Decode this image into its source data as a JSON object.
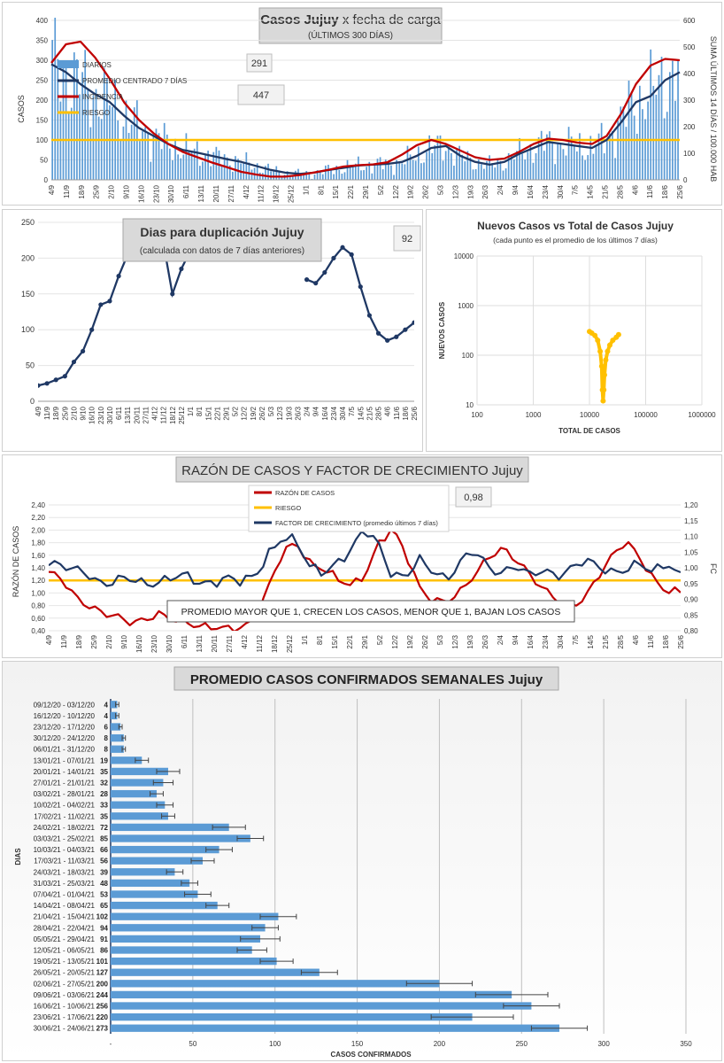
{
  "chart_data": [
    {
      "type": "bar",
      "id": "casos",
      "title": "Casos Jujuy",
      "title_suffix": "x fecha de carga",
      "subtitle": "(ÚLTIMOS 300 DÍAS)",
      "ylabel": "CASOS",
      "ylabel_right": "SUMA  ÚLTIMOS 14 DÍAS / 100.000 HAB",
      "ylim": [
        0,
        400
      ],
      "ylim_right": [
        0,
        600
      ],
      "yticks": [
        0,
        50,
        100,
        150,
        200,
        250,
        300,
        350,
        400
      ],
      "yticks_right": [
        0,
        100,
        200,
        300,
        400,
        500,
        600
      ],
      "x_ticks": [
        "4/9",
        "11/9",
        "18/9",
        "25/9",
        "2/10",
        "9/10",
        "16/10",
        "23/10",
        "30/10",
        "6/11",
        "13/11",
        "20/11",
        "27/11",
        "4/12",
        "11/12",
        "18/12",
        "25/12",
        "1/1",
        "8/1",
        "15/1",
        "22/1",
        "29/1",
        "5/2",
        "12/2",
        "19/2",
        "26/2",
        "5/3",
        "12/3",
        "19/3",
        "26/3",
        "2/4",
        "9/4",
        "16/4",
        "23/4",
        "30/4",
        "7/5",
        "14/5",
        "21/5",
        "28/5",
        "4/6",
        "11/6",
        "18/6",
        "25/6"
      ],
      "legend": [
        "DIARIOS",
        "PROMEDIO CENTRADO 7 DÍAS",
        "INCIDENCIA",
        "RIESGO"
      ],
      "annotations": [
        "291",
        "447"
      ],
      "riesgo": 100,
      "series": [
        {
          "name": "PROMEDIO CENTRADO 7 DÍAS",
          "axis": "left",
          "values": [
            290,
            270,
            240,
            215,
            195,
            160,
            130,
            110,
            90,
            75,
            68,
            60,
            52,
            45,
            35,
            25,
            18,
            15,
            18,
            25,
            30,
            36,
            38,
            40,
            45,
            60,
            80,
            85,
            60,
            45,
            38,
            45,
            65,
            80,
            95,
            90,
            85,
            80,
            100,
            145,
            195,
            210,
            250,
            270
          ]
        },
        {
          "name": "INCIDENCIA",
          "axis": "right",
          "values": [
            440,
            510,
            520,
            460,
            380,
            290,
            225,
            175,
            135,
            105,
            85,
            65,
            48,
            30,
            20,
            12,
            12,
            18,
            28,
            38,
            50,
            55,
            58,
            66,
            95,
            130,
            150,
            135,
            110,
            85,
            75,
            80,
            105,
            135,
            155,
            150,
            140,
            135,
            165,
            250,
            360,
            430,
            455,
            450
          ]
        }
      ]
    },
    {
      "type": "line",
      "id": "duplicacion",
      "title": "Dias para duplicación Jujuy",
      "subtitle": "(calculada con datos de 7 días anteriores)",
      "annotations": [
        "92"
      ],
      "ylim": [
        0,
        250
      ],
      "yticks": [
        0,
        50,
        100,
        150,
        200,
        250
      ],
      "x_ticks": [
        "4/9",
        "11/9",
        "18/9",
        "25/9",
        "2/10",
        "9/10",
        "16/10",
        "23/10",
        "30/10",
        "6/11",
        "13/11",
        "20/11",
        "27/11",
        "4/12",
        "11/12",
        "18/12",
        "25/12",
        "1/1",
        "8/1",
        "15/1",
        "22/1",
        "29/1",
        "5/2",
        "12/2",
        "19/2",
        "26/2",
        "5/3",
        "12/3",
        "19/3",
        "26/3",
        "2/4",
        "9/4",
        "16/4",
        "23/4",
        "30/4",
        "7/5",
        "14/5",
        "21/5",
        "28/5",
        "4/6",
        "11/6",
        "18/6",
        "25/6"
      ],
      "series": [
        {
          "segment": 1,
          "start": 0,
          "values": [
            22,
            25,
            30,
            35,
            55,
            70,
            100,
            135,
            140,
            175,
            205,
            240,
            260
          ]
        },
        {
          "segment": 2,
          "start": 14,
          "values": [
            220,
            150,
            185,
            210,
            240
          ]
        },
        {
          "segment": 3,
          "start": 30,
          "values": [
            170,
            165,
            180,
            200,
            215,
            205,
            160,
            120,
            95,
            85,
            90,
            100,
            110,
            95,
            90
          ]
        }
      ]
    },
    {
      "type": "scatter",
      "id": "nuevos-vs-total",
      "title": "Nuevos Casos vs Total de Casos Jujuy",
      "subtitle": "(cada punto es el promedio de los últimos 7 días)",
      "xlabel": "TOTAL DE CASOS",
      "ylabel": "NUEVOS CASOS",
      "scale": "log",
      "x_ticks": [
        "100",
        "1000",
        "10000",
        "100000",
        "1000000"
      ],
      "y_ticks": [
        "10",
        "100",
        "1000",
        "10000"
      ],
      "xlim": [
        100,
        1000000
      ],
      "ylim": [
        10,
        10000
      ],
      "points": [
        [
          10000,
          300
        ],
        [
          11000,
          280
        ],
        [
          12500,
          250
        ],
        [
          14000,
          200
        ],
        [
          15500,
          120
        ],
        [
          16500,
          60
        ],
        [
          17000,
          20
        ],
        [
          17500,
          12
        ],
        [
          18000,
          20
        ],
        [
          18500,
          40
        ],
        [
          19500,
          80
        ],
        [
          21000,
          120
        ],
        [
          23000,
          160
        ],
        [
          26000,
          200
        ],
        [
          30000,
          230
        ],
        [
          33000,
          260
        ]
      ]
    },
    {
      "type": "line",
      "id": "razon-factor",
      "title": "RAZÓN DE CASOS Y FACTOR DE CRECIMIENTO Jujuy",
      "ylabel": "RAZÓN DE CASOS",
      "ylabel_right": "FC",
      "annotations": [
        "0,98"
      ],
      "legend": [
        "RAZÓN DE CASOS",
        "RIESGO",
        "FACTOR DE CRECIMIENTO (promedio últimos 7 días)"
      ],
      "note": "PROMEDIO MAYOR QUE 1, CRECEN LOS CASOS, MENOR QUE 1, BAJAN LOS CASOS",
      "yticks": [
        "0,40",
        "0,60",
        "0,80",
        "1,00",
        "1,20",
        "1,40",
        "1,60",
        "1,80",
        "2,00",
        "2,20",
        "2,40"
      ],
      "yticks_right": [
        "0,80",
        "0,85",
        "0,90",
        "0,95",
        "1,00",
        "1,05",
        "1,10",
        "1,15",
        "1,20"
      ],
      "ylim": [
        0.4,
        2.4
      ],
      "ylim_right": [
        0.8,
        1.2
      ],
      "riesgo": 1.2,
      "x_ticks": [
        "4/9",
        "11/9",
        "18/9",
        "25/9",
        "2/10",
        "9/10",
        "16/10",
        "23/10",
        "30/10",
        "6/11",
        "13/11",
        "20/11",
        "27/11",
        "4/12",
        "11/12",
        "18/12",
        "25/12",
        "1/1",
        "8/1",
        "15/1",
        "22/1",
        "29/1",
        "5/2",
        "12/2",
        "19/2",
        "26/2",
        "5/3",
        "12/3",
        "19/3",
        "26/3",
        "2/4",
        "9/4",
        "16/4",
        "23/4",
        "30/4",
        "7/5",
        "14/5",
        "21/5",
        "28/5",
        "4/6",
        "11/6",
        "18/6",
        "25/6"
      ],
      "series": [
        {
          "name": "RAZÓN DE CASOS",
          "axis": "left",
          "values": [
            1.3,
            1.2,
            0.95,
            0.8,
            0.65,
            0.6,
            0.55,
            0.6,
            0.65,
            0.55,
            0.55,
            0.5,
            0.45,
            0.4,
            0.45,
            0.6,
            1.1,
            1.6,
            1.8,
            1.5,
            1.4,
            1.2,
            1.1,
            1.3,
            1.8,
            2.0,
            1.6,
            1.1,
            0.9,
            0.85,
            1.0,
            1.3,
            1.6,
            1.7,
            1.5,
            1.3,
            1.1,
            0.9,
            0.75,
            0.9,
            1.3,
            1.6,
            1.8,
            1.55,
            1.25,
            1.05,
            1.0
          ]
        },
        {
          "name": "FACTOR DE CRECIMIENTO (promedio últimos 7 días)",
          "axis": "right",
          "values": [
            1.02,
            1.0,
            0.99,
            0.98,
            0.95,
            0.96,
            0.96,
            0.95,
            0.96,
            0.97,
            0.97,
            0.95,
            0.96,
            0.97,
            0.95,
            0.97,
            1.05,
            1.1,
            1.08,
            1.0,
            0.99,
            1.02,
            1.05,
            1.12,
            1.08,
            0.98,
            0.97,
            1.02,
            0.99,
            0.97,
            1.02,
            1.05,
            1.0,
            0.99,
            1.01,
            0.97,
            0.99,
            0.98,
            1.0,
            1.02,
            1.0,
            0.99,
            1.0,
            1.01,
            0.98,
            1.02,
            0.98
          ]
        }
      ]
    },
    {
      "type": "bar",
      "orientation": "horizontal",
      "id": "semanales",
      "title": "PROMEDIO CASOS CONFIRMADOS SEMANALES Jujuy",
      "xlabel": "CASOS CONFIRMADOS",
      "ylabel": "DIAS",
      "xlim": [
        0,
        350
      ],
      "xticks": [
        "-",
        "50",
        "100",
        "150",
        "200",
        "250",
        "300",
        "350"
      ],
      "categories": [
        "09/12/20 - 03/12/20",
        "16/12/20 - 10/12/20",
        "23/12/20 - 17/12/20",
        "30/12/20 - 24/12/20",
        "06/01/21 - 31/12/20",
        "13/01/21 - 07/01/21",
        "20/01/21 - 14/01/21",
        "27/01/21 - 21/01/21",
        "03/02/21 - 28/01/21",
        "10/02/21 - 04/02/21",
        "17/02/21 - 11/02/21",
        "24/02/21 - 18/02/21",
        "03/03/21 - 25/02/21",
        "10/03/21 - 04/03/21",
        "17/03/21 - 11/03/21",
        "24/03/21 - 18/03/21",
        "31/03/21 - 25/03/21",
        "07/04/21 - 01/04/21",
        "14/04/21 - 08/04/21",
        "21/04/21 - 15/04/21",
        "28/04/21 - 22/04/21",
        "05/05/21 - 29/04/21",
        "12/05/21 - 06/05/21",
        "19/05/21 - 13/05/21",
        "26/05/21 - 20/05/21",
        "02/06/21 - 27/05/21",
        "09/06/21 - 03/06/21",
        "16/06/21 - 10/06/21",
        "23/06/21 - 17/06/21",
        "30/06/21 - 24/06/21"
      ],
      "values": [
        4,
        4,
        6,
        8,
        8,
        19,
        35,
        32,
        28,
        33,
        35,
        72,
        85,
        66,
        56,
        39,
        48,
        53,
        65,
        102,
        94,
        91,
        86,
        101,
        127,
        200,
        244,
        256,
        220,
        273
      ],
      "error": [
        1,
        1,
        1,
        1,
        1,
        4,
        7,
        6,
        4,
        5,
        4,
        10,
        8,
        8,
        7,
        5,
        5,
        8,
        7,
        11,
        8,
        12,
        9,
        10,
        11,
        20,
        22,
        17,
        25,
        17
      ]
    }
  ]
}
